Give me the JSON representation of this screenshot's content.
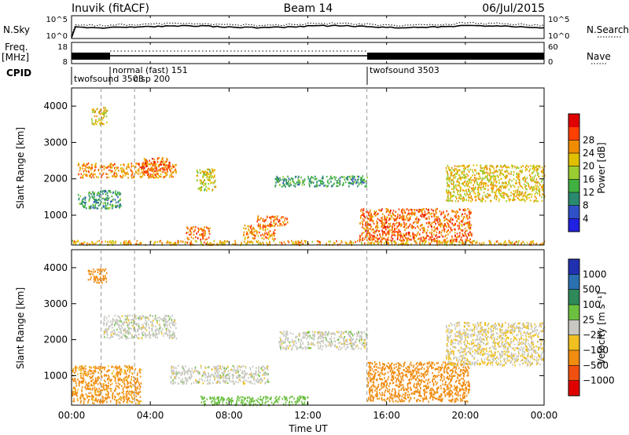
{
  "header": {
    "station": "Inuvik (fitACF)",
    "beam": "Beam 14",
    "date": "06/Jul/2015"
  },
  "strip_labels": {
    "nsky": "N.Sky",
    "nsky_ticks": [
      "10^5",
      "10^0"
    ],
    "nsearch": "N.Search",
    "nsearch_ticks": [
      "10^5",
      "10^0"
    ],
    "freq": "Freq.",
    "freq_unit": "[MHz]",
    "freq_ticks": [
      "18",
      "8"
    ],
    "nave": "Nave",
    "nave_ticks": [
      "60",
      "0"
    ],
    "cpid": "CPID"
  },
  "cpid_labels": [
    {
      "text": "twofsound 3503",
      "t_hours": 0.1
    },
    {
      "text": "normal (fast) 151",
      "t_hours": 1.5
    },
    {
      "text": "twofsound 3503",
      "t_hours": 15.0
    }
  ],
  "cpid_overlap": {
    "text": "clsp 200",
    "t_hours": 3.2
  },
  "axes": {
    "xlabel": "Time UT",
    "ylabel": "Slant Range [km]",
    "x_ticks": [
      "00:00",
      "04:00",
      "08:00",
      "12:00",
      "16:00",
      "20:00",
      "00:00"
    ],
    "y_ticks": [
      "1000",
      "2000",
      "3000",
      "4000"
    ],
    "xlim": [
      0,
      24
    ],
    "ylim": [
      180,
      4500
    ]
  },
  "colorbars": {
    "power": {
      "label": "Power [dB]",
      "ticks": [
        "4",
        "8",
        "12",
        "16",
        "20",
        "24",
        "28"
      ],
      "colors": [
        "#2020e0",
        "#3050c8",
        "#2a8a70",
        "#40b040",
        "#9acd32",
        "#e0c000",
        "#f08c00",
        "#ff4000",
        "#e00000"
      ]
    },
    "velocity": {
      "label": "Velocity [m s⁻¹]",
      "ticks": [
        "1000",
        "500",
        "100",
        "25",
        "−25",
        "−100",
        "−500",
        "−1000"
      ],
      "colors": [
        "#2030b0",
        "#2a6fb0",
        "#2f8a5a",
        "#6cc040",
        "#c8c8c0",
        "#f0c020",
        "#f08c10",
        "#f05010",
        "#e00000"
      ]
    }
  },
  "chart_data": {
    "type": "heatmap",
    "title": "Inuvik (fitACF)",
    "xlabel": "Time UT",
    "ylabel": "Slant Range [km]",
    "xlim_hours": [
      0,
      24
    ],
    "ylim_km": [
      180,
      4500
    ],
    "panels": [
      {
        "name": "Power [dB]",
        "blobs": [
          {
            "t0": 0.0,
            "t1": 24.0,
            "r0": 200,
            "r1": 320,
            "v": 22
          },
          {
            "t0": 0.3,
            "t1": 5.3,
            "r0": 2050,
            "r1": 2450,
            "v": 24
          },
          {
            "t0": 0.3,
            "t1": 2.5,
            "r0": 1200,
            "r1": 1700,
            "v": 10
          },
          {
            "t0": 1.0,
            "t1": 1.8,
            "r0": 3500,
            "r1": 4000,
            "v": 20
          },
          {
            "t0": 3.5,
            "t1": 5.0,
            "r0": 2200,
            "r1": 2600,
            "v": 26
          },
          {
            "t0": 6.3,
            "t1": 7.3,
            "r0": 1700,
            "r1": 2300,
            "v": 18
          },
          {
            "t0": 5.8,
            "t1": 7.0,
            "r0": 350,
            "r1": 700,
            "v": 26
          },
          {
            "t0": 8.7,
            "t1": 10.3,
            "r0": 350,
            "r1": 750,
            "v": 24
          },
          {
            "t0": 9.4,
            "t1": 11.0,
            "r0": 700,
            "r1": 1000,
            "v": 26
          },
          {
            "t0": 10.3,
            "t1": 15.0,
            "r0": 1800,
            "r1": 2100,
            "v": 10
          },
          {
            "t0": 14.6,
            "t1": 20.3,
            "r0": 300,
            "r1": 1200,
            "v": 26
          },
          {
            "t0": 19.0,
            "t1": 24.0,
            "r0": 1400,
            "r1": 2400,
            "v": 20
          }
        ]
      },
      {
        "name": "Velocity [m s^-1]",
        "blobs": [
          {
            "t0": 1.6,
            "t1": 5.3,
            "r0": 2050,
            "r1": 2700,
            "v": 0
          },
          {
            "t0": 5.0,
            "t1": 10.0,
            "r0": 800,
            "r1": 1300,
            "v": 0
          },
          {
            "t0": 10.5,
            "t1": 15.0,
            "r0": 1750,
            "r1": 2250,
            "v": 0
          },
          {
            "t0": 0.0,
            "t1": 3.5,
            "r0": 250,
            "r1": 1300,
            "v": -120
          },
          {
            "t0": 6.5,
            "t1": 12.0,
            "r0": 200,
            "r1": 450,
            "v": 60
          },
          {
            "t0": 15.0,
            "t1": 20.2,
            "r0": 300,
            "r1": 1400,
            "v": -400
          },
          {
            "t0": 19.0,
            "t1": 24.0,
            "r0": 1300,
            "r1": 2500,
            "v": -20
          },
          {
            "t0": 0.8,
            "t1": 1.8,
            "r0": 3600,
            "r1": 4000,
            "v": -300
          }
        ]
      }
    ]
  }
}
